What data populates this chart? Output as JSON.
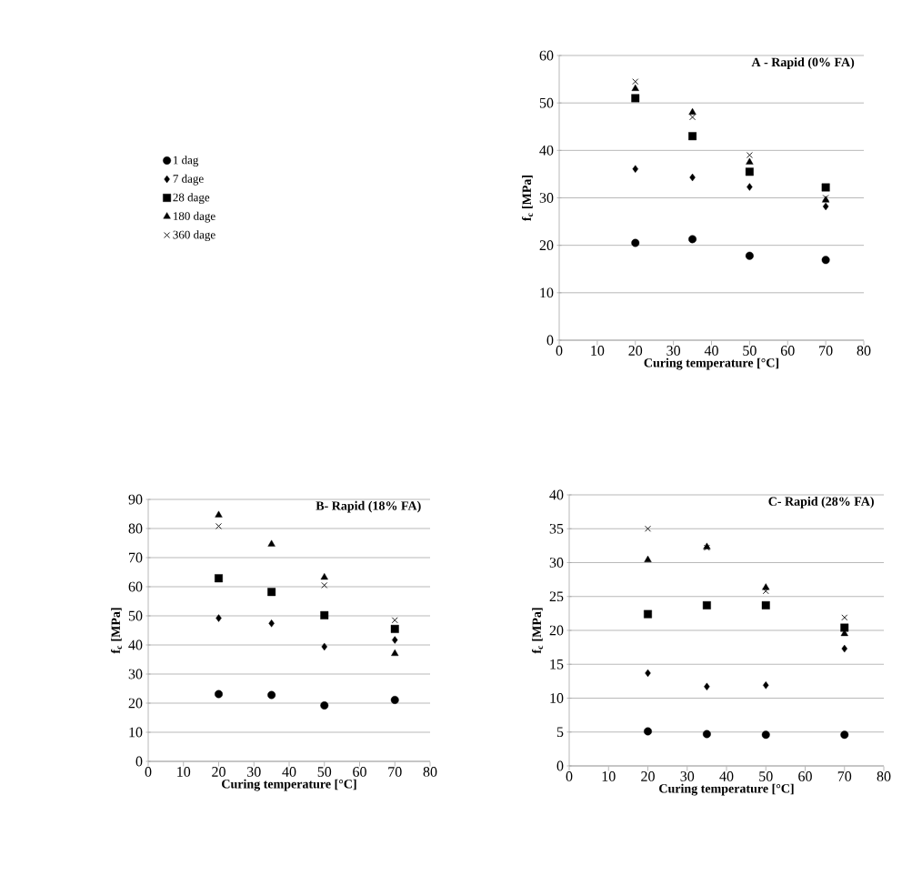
{
  "chart_data": [
    {
      "type": "scatter",
      "title": "A - Rapid (0% FA)",
      "xlabel": "Curing temperature [°C]",
      "ylabel": "f$_{c}$ [MPa]",
      "x": [
        20,
        35,
        50,
        70
      ],
      "xlim": [
        0,
        80
      ],
      "ylim": [
        0,
        60
      ],
      "xticks": [
        0,
        10,
        20,
        30,
        40,
        50,
        60,
        70,
        80
      ],
      "yticks": [
        0,
        10,
        20,
        30,
        40,
        50,
        60
      ],
      "grid": "y",
      "legend": "left",
      "series": [
        {
          "name": "1 dag",
          "color": "#000000",
          "marker": "circle",
          "values": [
            20.5,
            21.3,
            17.8,
            16.9
          ]
        },
        {
          "name": "7 dage",
          "color": "#000000",
          "marker": "diamond",
          "values": [
            36.1,
            34.3,
            32.3,
            28.2
          ]
        },
        {
          "name": "28 dage",
          "color": "#000000",
          "marker": "square",
          "values": [
            51,
            43,
            35.5,
            32.2
          ]
        },
        {
          "name": "180 dage",
          "color": "#000000",
          "marker": "triangle",
          "values": [
            53,
            48,
            37.5,
            29.5
          ]
        },
        {
          "name": "360 dage",
          "color": "#000000",
          "marker": "cross",
          "values": [
            54.5,
            47,
            39,
            30
          ]
        }
      ]
    },
    {
      "type": "scatter",
      "title": "B- Rapid (18% FA)",
      "xlabel": "Curing temperature [°C]",
      "ylabel": "f$_{c}$ [MPa]",
      "x": [
        20,
        35,
        50,
        70
      ],
      "xlim": [
        0,
        80
      ],
      "ylim": [
        0,
        90
      ],
      "xticks": [
        0,
        10,
        20,
        30,
        40,
        50,
        60,
        70,
        80
      ],
      "yticks": [
        0,
        10,
        20,
        30,
        40,
        50,
        60,
        70,
        80,
        90
      ],
      "grid": "y",
      "series": [
        {
          "color": "#000000",
          "marker": "circle",
          "values": [
            23.1,
            22.8,
            19.2,
            21.1
          ]
        },
        {
          "color": "#000000",
          "marker": "diamond",
          "values": [
            49.2,
            47.4,
            39.4,
            41.7
          ]
        },
        {
          "color": "#000000",
          "marker": "square",
          "values": [
            62.9,
            58.2,
            50.2,
            45.5
          ]
        },
        {
          "color": "#000000",
          "marker": "triangle",
          "values": [
            84.6,
            74.6,
            63.2,
            37
          ]
        },
        {
          "color": "#000000",
          "marker": "cross",
          "values": [
            80.8,
            null,
            60.5,
            48.5
          ]
        }
      ]
    },
    {
      "type": "scatter",
      "title": "C- Rapid (28% FA)",
      "xlabel": "Curing temperature [°C]",
      "ylabel": "f$_{c}$ [MPa]",
      "x": [
        20,
        35,
        50,
        70
      ],
      "xlim": [
        0,
        80
      ],
      "ylim": [
        0,
        40
      ],
      "xticks": [
        0,
        10,
        20,
        30,
        40,
        50,
        60,
        70,
        80
      ],
      "yticks": [
        0,
        5,
        10,
        15,
        20,
        25,
        30,
        35,
        40
      ],
      "grid": "y",
      "series": [
        {
          "color": "#000000",
          "marker": "circle",
          "values": [
            5.1,
            4.7,
            4.6,
            4.6
          ]
        },
        {
          "color": "#000000",
          "marker": "diamond",
          "values": [
            13.7,
            11.7,
            11.9,
            17.3
          ]
        },
        {
          "color": "#000000",
          "marker": "square",
          "values": [
            22.4,
            23.7,
            23.7,
            20.4
          ]
        },
        {
          "color": "#000000",
          "marker": "triangle",
          "values": [
            30.4,
            32.3,
            26.3,
            19.5
          ]
        },
        {
          "color": "#000000",
          "marker": "cross",
          "values": [
            35,
            32.2,
            25.8,
            21.9
          ]
        }
      ]
    }
  ]
}
